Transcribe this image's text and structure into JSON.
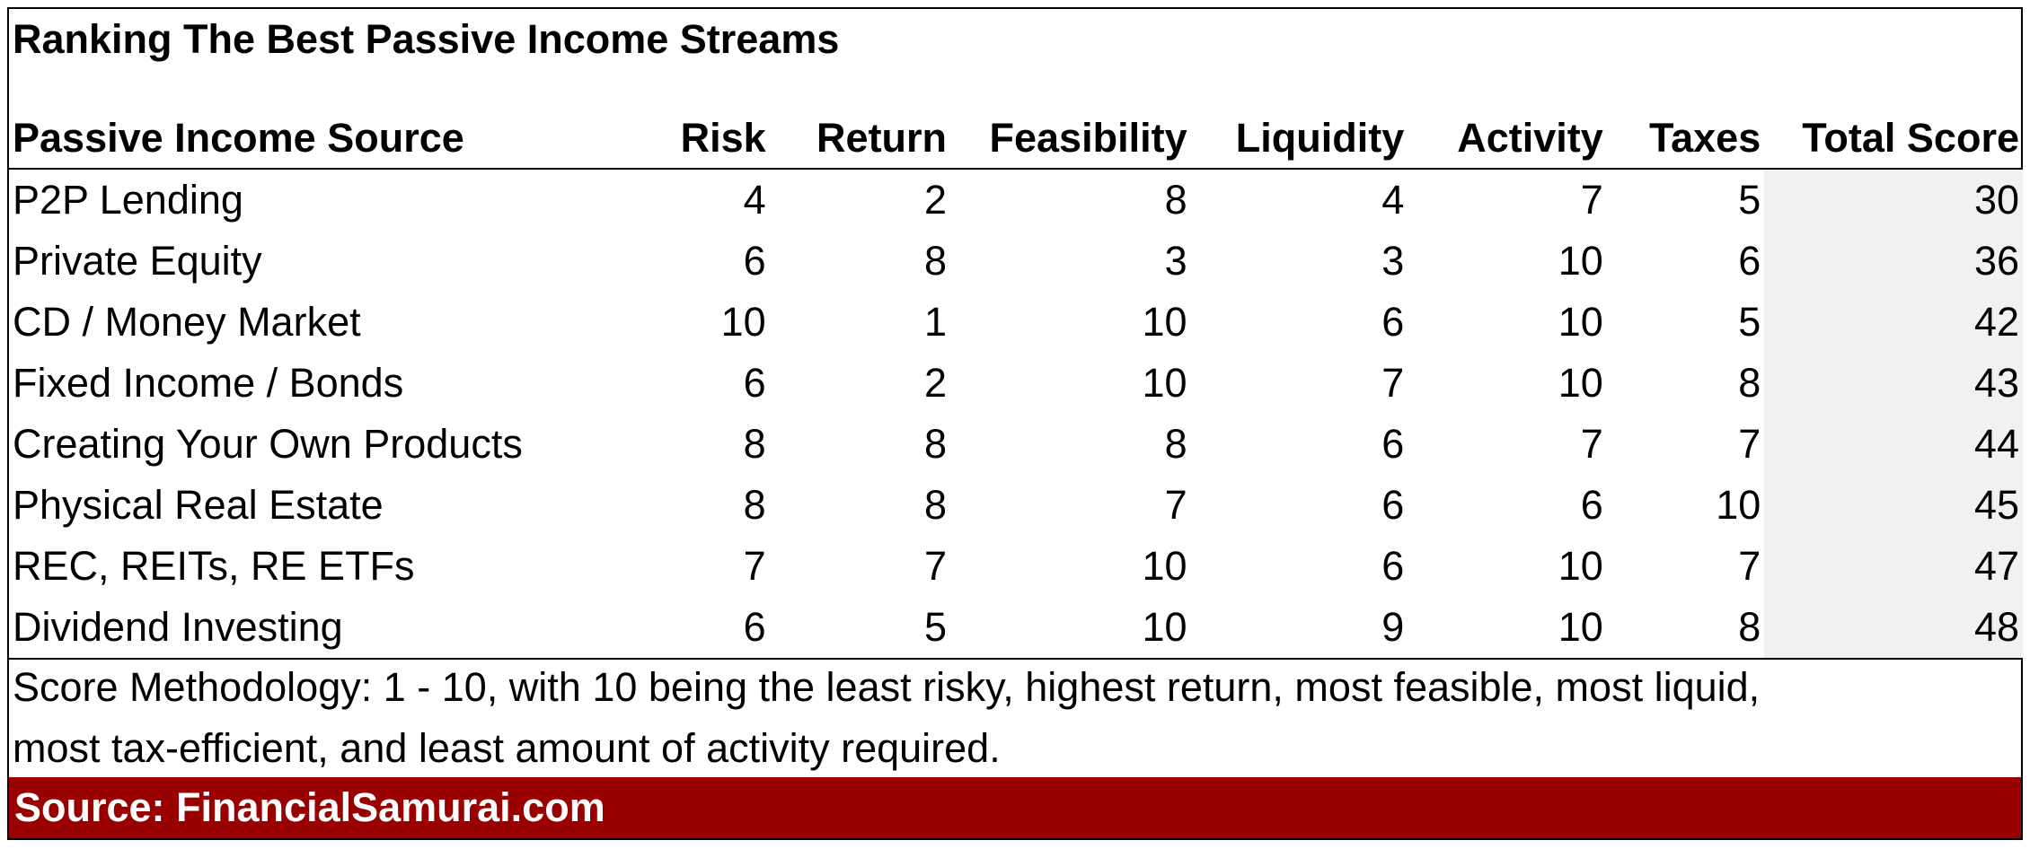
{
  "title": "Ranking The Best Passive Income Streams",
  "table": {
    "headers": [
      "Passive Income Source",
      "Risk",
      "Return",
      "Feasibility",
      "Liquidity",
      "Activity",
      "Taxes",
      "Total Score"
    ],
    "rows": [
      [
        "P2P Lending",
        "4",
        "2",
        "8",
        "4",
        "7",
        "5",
        "30"
      ],
      [
        "Private Equity",
        "6",
        "8",
        "3",
        "3",
        "10",
        "6",
        "36"
      ],
      [
        "CD / Money Market",
        "10",
        "1",
        "10",
        "6",
        "10",
        "5",
        "42"
      ],
      [
        "Fixed Income / Bonds",
        "6",
        "2",
        "10",
        "7",
        "10",
        "8",
        "43"
      ],
      [
        "Creating Your Own Products",
        "8",
        "8",
        "8",
        "6",
        "7",
        "7",
        "44"
      ],
      [
        "Physical Real Estate",
        "8",
        "8",
        "7",
        "6",
        "6",
        "10",
        "45"
      ],
      [
        "REC, REITs, RE ETFs",
        "7",
        "7",
        "10",
        "6",
        "10",
        "7",
        "47"
      ],
      [
        "Dividend Investing",
        "6",
        "5",
        "10",
        "9",
        "10",
        "8",
        "48"
      ]
    ]
  },
  "methodology": {
    "line1": "Score Methodology: 1 - 10, with 10 being the least risky, highest return, most feasible, most liquid,",
    "line2": "most tax-efficient, and least amount of activity required."
  },
  "source": "Source: FinancialSamurai.com",
  "colors": {
    "source_bar": "#990000",
    "total_column_bg": "#f1f1f1"
  }
}
